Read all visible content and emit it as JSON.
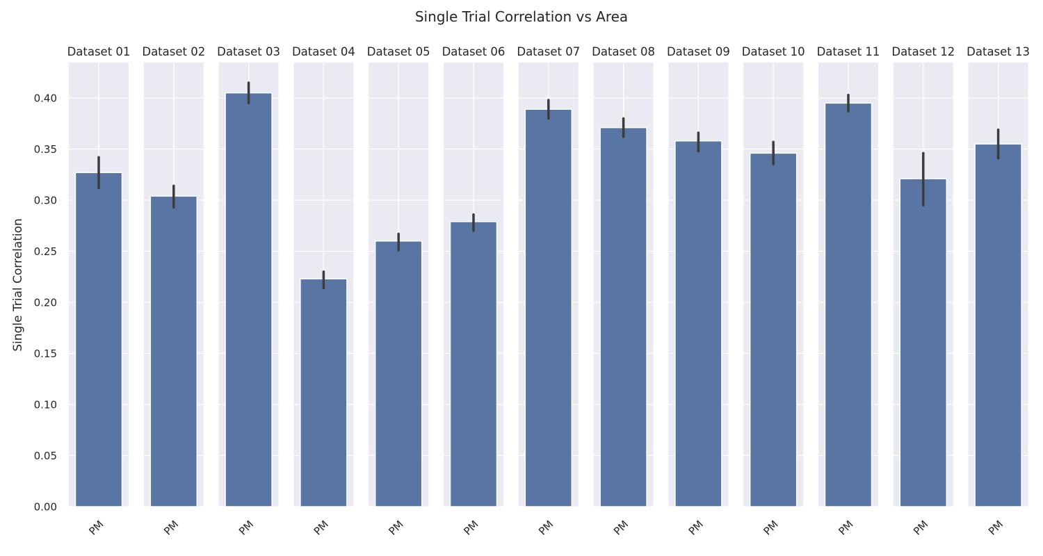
{
  "chart_data": {
    "type": "bar",
    "title": "Single Trial Correlation vs Area",
    "ylabel": "Single Trial Correlation",
    "xlabel": "",
    "ylim": [
      0,
      0.435
    ],
    "yticks": [
      "0.00",
      "0.05",
      "0.10",
      "0.15",
      "0.20",
      "0.25",
      "0.30",
      "0.35",
      "0.40"
    ],
    "grid": true,
    "colors": {
      "bar": "#5875a4",
      "panel_bg": "#eaeaf2",
      "grid": "#ffffff",
      "errorbar": "#3c3c3c"
    },
    "panels": [
      {
        "title": "Dataset 01",
        "categories": [
          "PM"
        ],
        "values": [
          0.327
        ],
        "error_low": [
          0.312
        ],
        "error_high": [
          0.342
        ]
      },
      {
        "title": "Dataset 02",
        "categories": [
          "PM"
        ],
        "values": [
          0.304
        ],
        "error_low": [
          0.293
        ],
        "error_high": [
          0.314
        ]
      },
      {
        "title": "Dataset 03",
        "categories": [
          "PM"
        ],
        "values": [
          0.405
        ],
        "error_low": [
          0.395
        ],
        "error_high": [
          0.415
        ]
      },
      {
        "title": "Dataset 04",
        "categories": [
          "PM"
        ],
        "values": [
          0.223
        ],
        "error_low": [
          0.214
        ],
        "error_high": [
          0.23
        ]
      },
      {
        "title": "Dataset 05",
        "categories": [
          "PM"
        ],
        "values": [
          0.26
        ],
        "error_low": [
          0.251
        ],
        "error_high": [
          0.267
        ]
      },
      {
        "title": "Dataset 06",
        "categories": [
          "PM"
        ],
        "values": [
          0.279
        ],
        "error_low": [
          0.27
        ],
        "error_high": [
          0.286
        ]
      },
      {
        "title": "Dataset 07",
        "categories": [
          "PM"
        ],
        "values": [
          0.389
        ],
        "error_low": [
          0.38
        ],
        "error_high": [
          0.398
        ]
      },
      {
        "title": "Dataset 08",
        "categories": [
          "PM"
        ],
        "values": [
          0.371
        ],
        "error_low": [
          0.362
        ],
        "error_high": [
          0.38
        ]
      },
      {
        "title": "Dataset 09",
        "categories": [
          "PM"
        ],
        "values": [
          0.358
        ],
        "error_low": [
          0.348
        ],
        "error_high": [
          0.366
        ]
      },
      {
        "title": "Dataset 10",
        "categories": [
          "PM"
        ],
        "values": [
          0.346
        ],
        "error_low": [
          0.335
        ],
        "error_high": [
          0.357
        ]
      },
      {
        "title": "Dataset 11",
        "categories": [
          "PM"
        ],
        "values": [
          0.395
        ],
        "error_low": [
          0.387
        ],
        "error_high": [
          0.403
        ]
      },
      {
        "title": "Dataset 12",
        "categories": [
          "PM"
        ],
        "values": [
          0.321
        ],
        "error_low": [
          0.295
        ],
        "error_high": [
          0.346
        ]
      },
      {
        "title": "Dataset 13",
        "categories": [
          "PM"
        ],
        "values": [
          0.355
        ],
        "error_low": [
          0.341
        ],
        "error_high": [
          0.369
        ]
      }
    ]
  }
}
